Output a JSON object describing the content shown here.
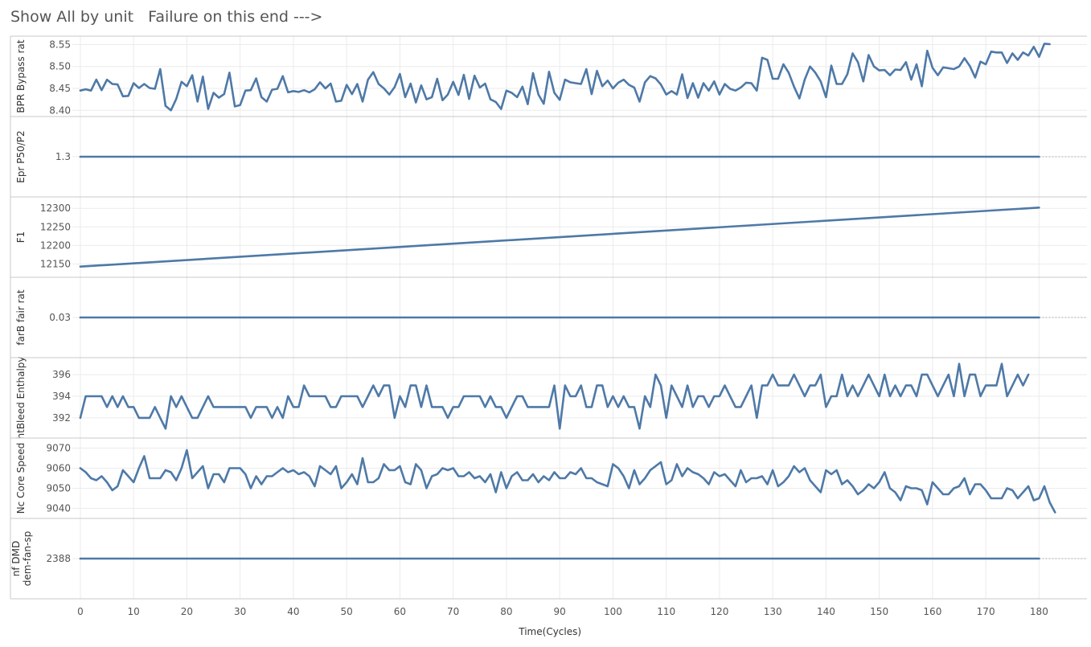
{
  "header": {
    "title": "Show All by unit   Failure on this end --->"
  },
  "chart_data": {
    "type": "line",
    "xlabel": "Time(Cycles)",
    "x_ticks": [
      0,
      10,
      20,
      30,
      40,
      50,
      60,
      70,
      80,
      90,
      100,
      110,
      120,
      130,
      140,
      150,
      160,
      170,
      180
    ],
    "xlim": [
      -1.5,
      189
    ],
    "grid": true,
    "line_color": "#4e79a7",
    "panels": [
      {
        "ylabel": "BPR Bypass rat",
        "yticks": [
          "8.40",
          "8.45",
          "8.50",
          "8.55"
        ],
        "ylim": [
          8.395,
          8.56
        ],
        "values": [
          8.445,
          8.448,
          8.445,
          8.47,
          8.446,
          8.47,
          8.46,
          8.459,
          8.432,
          8.433,
          8.462,
          8.451,
          8.46,
          8.451,
          8.449,
          8.494,
          8.41,
          8.4,
          8.426,
          8.465,
          8.455,
          8.48,
          8.42,
          8.477,
          8.403,
          8.44,
          8.429,
          8.437,
          8.486,
          8.409,
          8.412,
          8.445,
          8.446,
          8.473,
          8.43,
          8.42,
          8.447,
          8.449,
          8.478,
          8.441,
          8.444,
          8.442,
          8.446,
          8.441,
          8.448,
          8.464,
          8.45,
          8.461,
          8.42,
          8.422,
          8.458,
          8.437,
          8.46,
          8.42,
          8.47,
          8.487,
          8.46,
          8.45,
          8.436,
          8.453,
          8.483,
          8.43,
          8.461,
          8.418,
          8.457,
          8.425,
          8.43,
          8.472,
          8.423,
          8.436,
          8.465,
          8.435,
          8.481,
          8.426,
          8.479,
          8.452,
          8.461,
          8.425,
          8.419,
          8.403,
          8.445,
          8.44,
          8.43,
          8.454,
          8.414,
          8.485,
          8.436,
          8.415,
          8.488,
          8.44,
          8.424,
          8.47,
          8.464,
          8.462,
          8.46,
          8.494,
          8.437,
          8.49,
          8.455,
          8.468,
          8.45,
          8.463,
          8.47,
          8.458,
          8.452,
          8.42,
          8.464,
          8.478,
          8.473,
          8.459,
          8.436,
          8.444,
          8.436,
          8.482,
          8.428,
          8.462,
          8.429,
          8.462,
          8.445,
          8.466,
          8.436,
          8.46,
          8.449,
          8.445,
          8.452,
          8.463,
          8.462,
          8.445,
          8.52,
          8.515,
          8.472,
          8.472,
          8.505,
          8.486,
          8.454,
          8.427,
          8.47,
          8.5,
          8.486,
          8.466,
          8.43,
          8.502,
          8.46,
          8.46,
          8.482,
          8.53,
          8.51,
          8.466,
          8.526,
          8.5,
          8.491,
          8.492,
          8.48,
          8.493,
          8.492,
          8.51,
          8.47,
          8.505,
          8.455,
          8.536,
          8.497,
          8.48,
          8.498,
          8.496,
          8.494,
          8.5,
          8.519,
          8.501,
          8.475,
          8.511,
          8.505,
          8.534,
          8.532,
          8.532,
          8.508,
          8.53,
          8.515,
          8.532,
          8.525,
          8.545,
          8.522,
          8.552,
          8.551
        ]
      },
      {
        "ylabel": "Epr P50/P2",
        "yticks": [
          "1.3"
        ],
        "ylim": [
          1.2,
          1.4
        ],
        "constant": 1.3
      },
      {
        "ylabel": "F1",
        "yticks": [
          "12150",
          "12200",
          "12250",
          "12300"
        ],
        "ylim": [
          12125,
          12320
        ],
        "linear": [
          12143,
          12302
        ]
      },
      {
        "ylabel": "farB fair rat",
        "yticks": [
          "0.03"
        ],
        "ylim": [
          0.02,
          0.04
        ],
        "constant": 0.03
      },
      {
        "ylabel": "htBleed Enthalpy",
        "yticks": [
          "392",
          "394",
          "396"
        ],
        "ylim": [
          390.5,
          397.2
        ],
        "values": [
          392,
          394,
          394,
          394,
          394,
          393,
          394,
          393,
          394,
          393,
          393,
          392,
          392,
          392,
          393,
          392,
          391,
          394,
          393,
          394,
          393,
          392,
          392,
          393,
          394,
          393,
          393,
          393,
          393,
          393,
          393,
          393,
          392,
          393,
          393,
          393,
          392,
          393,
          392,
          394,
          393,
          393,
          395,
          394,
          394,
          394,
          394,
          393,
          393,
          394,
          394,
          394,
          394,
          393,
          394,
          395,
          394,
          395,
          395,
          392,
          394,
          393,
          395,
          395,
          393,
          395,
          393,
          393,
          393,
          392,
          393,
          393,
          394,
          394,
          394,
          394,
          393,
          394,
          393,
          393,
          392,
          393,
          394,
          394,
          393,
          393,
          393,
          393,
          393,
          395,
          391,
          395,
          394,
          394,
          395,
          393,
          393,
          395,
          395,
          393,
          394,
          393,
          394,
          393,
          393,
          391,
          394,
          393,
          396,
          395,
          392,
          395,
          394,
          393,
          395,
          393,
          394,
          394,
          393,
          394,
          394,
          395,
          394,
          393,
          393,
          394,
          395,
          392,
          395,
          395,
          396,
          395,
          395,
          395,
          396,
          395,
          394,
          395,
          395,
          396,
          393,
          394,
          394,
          396,
          394,
          395,
          394,
          395,
          396,
          395,
          394,
          396,
          394,
          395,
          394,
          395,
          395,
          394,
          396,
          396,
          395,
          394,
          395,
          396,
          394,
          397,
          394,
          396,
          396,
          394,
          395,
          395,
          395,
          397,
          394,
          395,
          396,
          395,
          396
        ]
      },
      {
        "ylabel": "Nc Core Speed",
        "yticks": [
          "9040",
          "9050",
          "9060",
          "9070"
        ],
        "ylim": [
          9037,
          9073
        ],
        "values": [
          9060,
          9058,
          9055,
          9054,
          9056,
          9053,
          9049,
          9051,
          9059,
          9056,
          9053,
          9060,
          9066,
          9055,
          9055,
          9055,
          9059,
          9058,
          9054,
          9060,
          9069,
          9055,
          9058,
          9061,
          9050,
          9057,
          9057,
          9053,
          9060,
          9060,
          9060,
          9057,
          9050,
          9056,
          9052,
          9056,
          9056,
          9058,
          9060,
          9058,
          9059,
          9057,
          9058,
          9056,
          9051,
          9061,
          9059,
          9057,
          9061,
          9050,
          9053,
          9057,
          9052,
          9065,
          9053,
          9053,
          9055,
          9062,
          9059,
          9059,
          9061,
          9053,
          9052,
          9062,
          9059,
          9050,
          9056,
          9057,
          9060,
          9059,
          9060,
          9056,
          9056,
          9058,
          9055,
          9056,
          9053,
          9057,
          9048,
          9058,
          9050,
          9056,
          9058,
          9054,
          9054,
          9057,
          9053,
          9056,
          9054,
          9058,
          9055,
          9055,
          9058,
          9057,
          9060,
          9055,
          9055,
          9053,
          9052,
          9051,
          9062,
          9060,
          9056,
          9050,
          9059,
          9052,
          9055,
          9059,
          9061,
          9063,
          9052,
          9054,
          9062,
          9056,
          9060,
          9058,
          9057,
          9055,
          9052,
          9058,
          9056,
          9057,
          9054,
          9051,
          9059,
          9053,
          9055,
          9055,
          9056,
          9052,
          9059,
          9051,
          9053,
          9056,
          9061,
          9058,
          9060,
          9054,
          9051,
          9048,
          9059,
          9057,
          9059,
          9052,
          9054,
          9051,
          9047,
          9049,
          9052,
          9050,
          9053,
          9058,
          9050,
          9048,
          9044,
          9051,
          9050,
          9050,
          9049,
          9042,
          9053,
          9050,
          9047,
          9047,
          9050,
          9051,
          9055,
          9047,
          9052,
          9052,
          9049,
          9045,
          9045,
          9045,
          9050,
          9049,
          9045,
          9048,
          9051,
          9044,
          9045,
          9051,
          9043,
          9038
        ]
      },
      {
        "ylabel_lines": [
          "nf DMD",
          "dem-fan-sp"
        ],
        "yticks": [
          "2388"
        ],
        "ylim": [
          2387,
          2389
        ],
        "constant": 2388
      }
    ]
  }
}
